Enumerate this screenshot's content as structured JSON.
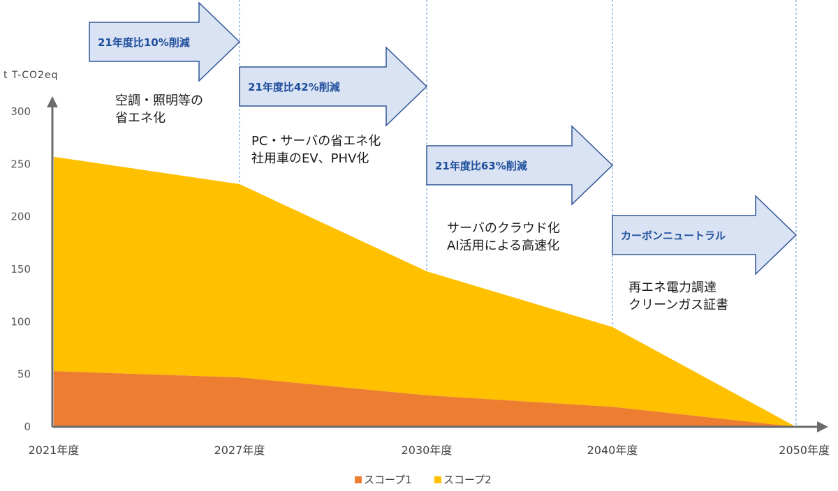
{
  "chart_data": {
    "type": "area",
    "stacked": true,
    "unit_label": "t T-CO2eq",
    "categories": [
      "2021年度",
      "2027年度",
      "2030年度",
      "2040年度",
      "2050年度"
    ],
    "series": [
      {
        "name": "スコープ1",
        "values": [
          53,
          47,
          30,
          19,
          0
        ],
        "color": "#ed7d31"
      },
      {
        "name": "スコープ2",
        "values": [
          204,
          184,
          118,
          76,
          0
        ],
        "color": "#ffc000"
      }
    ],
    "ylim": [
      0,
      300
    ],
    "yticks": [
      0,
      50,
      100,
      150,
      200,
      250,
      300
    ],
    "grid": "vertical-dashed",
    "legend_position": "bottom",
    "target_arrows": [
      "21年度比10%削減",
      "21年度比42%削減",
      "21年度比63%削減",
      "カーボンニュートラル"
    ],
    "measures": [
      [
        "空調・照明等の",
        "省エネ化"
      ],
      [
        "PC・サーバの省エネ化",
        "社用車のEV、PHV化"
      ],
      [
        "サーバのクラウド化",
        "AI活用による高速化"
      ],
      [
        "再エネ電力調達",
        "クリーンガス証書"
      ]
    ]
  }
}
